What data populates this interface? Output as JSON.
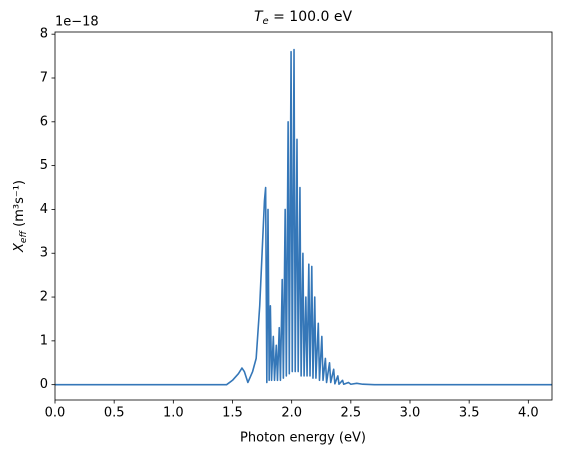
{
  "chart_data": {
    "type": "line",
    "title": {
      "symbol": "T",
      "subscript": "e",
      "rest": " = 100.0 eV"
    },
    "xlabel": "Photon energy (eV)",
    "ylabel": {
      "symbol": "X",
      "subscript": "eff",
      "unit": " (m³s⁻¹)"
    },
    "y_offset_label": "1e−18",
    "color": "#3577b8",
    "x": [
      0,
      1.45,
      1.5,
      1.55,
      1.58,
      1.6,
      1.63,
      1.67,
      1.7,
      1.73,
      1.75,
      1.77,
      1.78,
      1.79,
      1.8,
      1.81,
      1.82,
      1.83,
      1.845,
      1.855,
      1.87,
      1.88,
      1.895,
      1.905,
      1.92,
      1.93,
      1.945,
      1.955,
      1.97,
      1.98,
      1.995,
      2.005,
      2.02,
      2.03,
      2.045,
      2.055,
      2.07,
      2.08,
      2.095,
      2.105,
      2.12,
      2.13,
      2.145,
      2.155,
      2.17,
      2.18,
      2.195,
      2.205,
      2.225,
      2.235,
      2.255,
      2.265,
      2.285,
      2.295,
      2.32,
      2.33,
      2.355,
      2.365,
      2.39,
      2.4,
      2.43,
      2.44,
      2.48,
      2.5,
      2.55,
      2.6,
      2.7,
      4.2
    ],
    "values": [
      0,
      0,
      0.1,
      0.25,
      0.38,
      0.3,
      0.05,
      0.3,
      0.6,
      1.8,
      3.0,
      4.2,
      4.5,
      0.05,
      4.0,
      0.1,
      1.8,
      0.1,
      1.1,
      0.1,
      0.9,
      0.1,
      1.3,
      0.1,
      2.4,
      0.15,
      4.0,
      0.2,
      6.0,
      0.25,
      7.6,
      0.3,
      7.65,
      0.3,
      5.6,
      0.3,
      4.5,
      0.2,
      3.0,
      0.2,
      2.0,
      0.2,
      2.75,
      0.2,
      2.7,
      0.15,
      2.0,
      0.15,
      1.4,
      0.1,
      1.1,
      0.1,
      0.6,
      0.05,
      0.5,
      0.05,
      0.35,
      0.02,
      0.2,
      0.01,
      0.1,
      0.01,
      0.05,
      0.01,
      0.03,
      0.01,
      0,
      0
    ],
    "xlim": [
      0,
      4.2
    ],
    "xticks": [
      {
        "value": 0,
        "label": "0.0"
      },
      {
        "value": 0.5,
        "label": "0.5"
      },
      {
        "value": 1,
        "label": "1.0"
      },
      {
        "value": 1.5,
        "label": "1.5"
      },
      {
        "value": 2,
        "label": "2.0"
      },
      {
        "value": 2.5,
        "label": "2.5"
      },
      {
        "value": 3,
        "label": "3.0"
      },
      {
        "value": 3.5,
        "label": "3.5"
      },
      {
        "value": 4,
        "label": "4.0"
      }
    ],
    "ylim": [
      -0.35,
      8.05
    ],
    "yticks": [
      0,
      1,
      2,
      3,
      4,
      5,
      6,
      7,
      8
    ],
    "grid": false
  }
}
